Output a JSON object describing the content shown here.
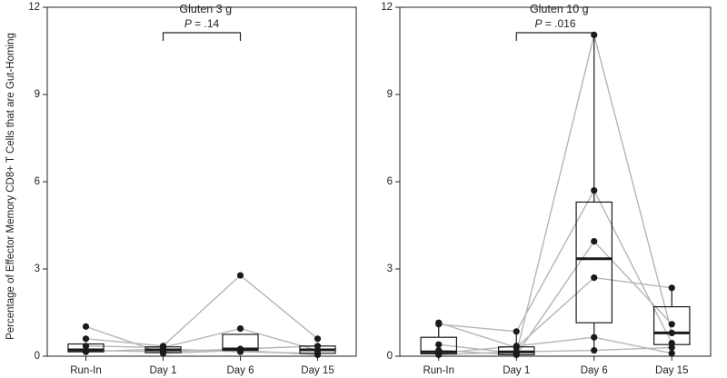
{
  "chart_data": {
    "type": "box",
    "ylabel": "Percentage of Effector Memory CD8+ T Cells that are Gut-Homing",
    "ylim": [
      0,
      12
    ],
    "yticks": [
      0,
      3,
      6,
      9,
      12
    ],
    "categories": [
      "Run-In",
      "Day 1",
      "Day 6",
      "Day 15"
    ],
    "colors": {
      "line": "#b5b5b5",
      "point": "#1a1a1a",
      "box": "#1a1a1a"
    },
    "panels": [
      {
        "title": "Gluten 3 g",
        "p_value": {
          "prefix": "P",
          "text": " = .14",
          "between": [
            1,
            2
          ]
        },
        "boxes": [
          {
            "q1": 0.15,
            "median": 0.22,
            "q3": 0.42,
            "whisker_low": 0.1,
            "whisker_high": 0.42
          },
          {
            "q1": 0.12,
            "median": 0.22,
            "q3": 0.32,
            "whisker_low": 0.05,
            "whisker_high": 0.35
          },
          {
            "q1": 0.2,
            "median": 0.25,
            "q3": 0.75,
            "whisker_low": 0.15,
            "whisker_high": 0.75
          },
          {
            "q1": 0.1,
            "median": 0.22,
            "q3": 0.35,
            "whisker_low": 0.05,
            "whisker_high": 0.35
          }
        ],
        "subjects": [
          [
            1.02,
            0.1,
            0.2,
            0.05
          ],
          [
            0.6,
            0.35,
            2.78,
            0.6
          ],
          [
            0.35,
            0.3,
            0.95,
            0.2
          ],
          [
            0.2,
            0.15,
            0.25,
            0.35
          ],
          [
            0.15,
            0.25,
            0.15,
            0.1
          ]
        ]
      },
      {
        "title": "Gluten 10 g",
        "p_value": {
          "prefix": "P",
          "text": " = .016",
          "between": [
            1,
            2
          ]
        },
        "boxes": [
          {
            "q1": 0.08,
            "median": 0.15,
            "q3": 0.65,
            "whisker_low": 0.05,
            "whisker_high": 1.1
          },
          {
            "q1": 0.05,
            "median": 0.15,
            "q3": 0.32,
            "whisker_low": 0.02,
            "whisker_high": 0.85
          },
          {
            "q1": 1.15,
            "median": 3.35,
            "q3": 5.3,
            "whisker_low": 0.2,
            "whisker_high": 11.0
          },
          {
            "q1": 0.4,
            "median": 0.8,
            "q3": 1.7,
            "whisker_low": 0.08,
            "whisker_high": 2.35
          }
        ],
        "subjects": [
          [
            1.1,
            0.85,
            5.7,
            0.45
          ],
          [
            1.15,
            0.3,
            2.7,
            2.35
          ],
          [
            0.4,
            0.1,
            11.05,
            0.8
          ],
          [
            0.2,
            0.05,
            3.95,
            1.1
          ],
          [
            0.1,
            0.35,
            0.65,
            0.1
          ],
          [
            0.05,
            0.15,
            0.2,
            0.3
          ]
        ]
      }
    ]
  }
}
